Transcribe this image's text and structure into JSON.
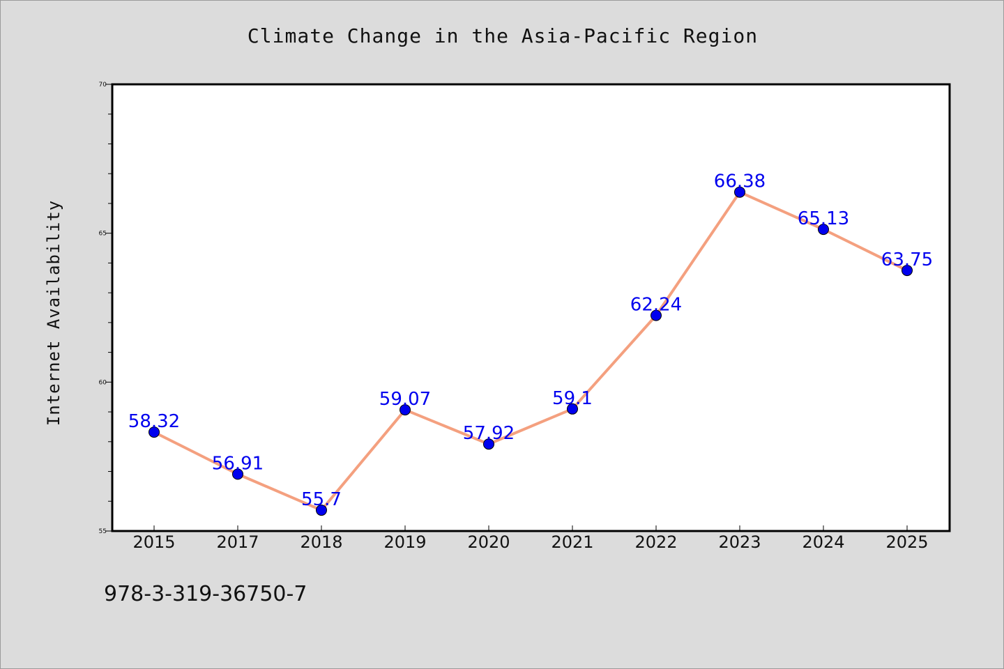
{
  "chart_data": {
    "type": "line",
    "title": "Climate Change in the Asia-Pacific Region",
    "xlabel": "",
    "ylabel": "Internet Availability",
    "categories": [
      "2015",
      "2017",
      "2018",
      "2019",
      "2020",
      "2021",
      "2022",
      "2023",
      "2024",
      "2025"
    ],
    "series": [
      {
        "values": [
          58.32,
          56.91,
          55.7,
          59.07,
          57.92,
          59.1,
          62.24,
          66.38,
          65.13,
          63.75
        ]
      }
    ],
    "data_labels": [
      "58.32",
      "56.91",
      "55.7",
      "59.07",
      "57.92",
      "59.1",
      "62.24",
      "66.38",
      "65.13",
      "63.75"
    ],
    "ylim": [
      55,
      70
    ],
    "y_ticks": [
      55,
      60,
      65,
      70
    ],
    "y_tick_labels": [
      "55",
      "60",
      "65",
      "70"
    ],
    "grid": false,
    "colors": {
      "line": "#f4a07f",
      "marker": "#0000ee",
      "label": "#0000ee",
      "background": "#dcdcdc",
      "plot_background": "#ffffff"
    }
  },
  "footer": {
    "isbn": "978-3-319-36750-7"
  }
}
